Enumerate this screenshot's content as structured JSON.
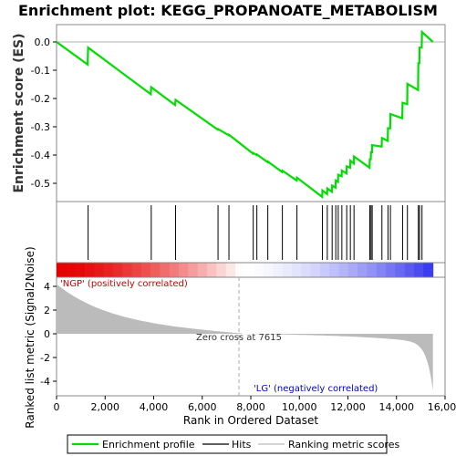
{
  "chart_data": {
    "type": "line",
    "title": "Enrichment plot: KEGG_PROPANOATE_METABOLISM",
    "ylabel": "Enrichment score (ES)",
    "ylabel2": "Ranked list metric (Signal2Noise)",
    "xlabel": "Rank in Ordered Dataset",
    "x_range": [
      0,
      16000
    ],
    "es_ylim": [
      -0.57,
      0.06
    ],
    "metric_ylim": [
      -5,
      5
    ],
    "x_ticks": [
      0,
      2000,
      4000,
      6000,
      8000,
      10000,
      12000,
      14000,
      16000
    ],
    "es_ticks": [
      0.0,
      -0.1,
      -0.2,
      -0.3,
      -0.4,
      -0.5
    ],
    "metric_ticks": [
      4,
      2,
      0,
      -2,
      -4
    ],
    "total_genes": 15500,
    "hits": [
      1300,
      3900,
      4900,
      6650,
      7100,
      8100,
      8250,
      8700,
      9300,
      9900,
      10950,
      11150,
      11350,
      11500,
      11600,
      11750,
      11950,
      12100,
      12250,
      12900,
      12950,
      13000,
      13400,
      13650,
      13750,
      14250,
      14450,
      14900,
      14950,
      15050
    ],
    "es_curve": [
      [
        0,
        0.0
      ],
      [
        1280,
        -0.08
      ],
      [
        1300,
        -0.02
      ],
      [
        3880,
        -0.185
      ],
      [
        3900,
        -0.16
      ],
      [
        4880,
        -0.223
      ],
      [
        4900,
        -0.205
      ],
      [
        6640,
        -0.31
      ],
      [
        6650,
        -0.308
      ],
      [
        7090,
        -0.33
      ],
      [
        7100,
        -0.328
      ],
      [
        8090,
        -0.395
      ],
      [
        8100,
        -0.393
      ],
      [
        8240,
        -0.4
      ],
      [
        8250,
        -0.398
      ],
      [
        8690,
        -0.425
      ],
      [
        8700,
        -0.423
      ],
      [
        9290,
        -0.46
      ],
      [
        9300,
        -0.455
      ],
      [
        9890,
        -0.49
      ],
      [
        9900,
        -0.48
      ],
      [
        10940,
        -0.548
      ],
      [
        10950,
        -0.525
      ],
      [
        11140,
        -0.538
      ],
      [
        11150,
        -0.518
      ],
      [
        11340,
        -0.53
      ],
      [
        11350,
        -0.508
      ],
      [
        11490,
        -0.515
      ],
      [
        11500,
        -0.49
      ],
      [
        11590,
        -0.495
      ],
      [
        11600,
        -0.47
      ],
      [
        11740,
        -0.475
      ],
      [
        11750,
        -0.455
      ],
      [
        11940,
        -0.465
      ],
      [
        11950,
        -0.44
      ],
      [
        12090,
        -0.445
      ],
      [
        12100,
        -0.42
      ],
      [
        12240,
        -0.43
      ],
      [
        12250,
        -0.405
      ],
      [
        12890,
        -0.445
      ],
      [
        12900,
        -0.415
      ],
      [
        12940,
        -0.415
      ],
      [
        12950,
        -0.39
      ],
      [
        12990,
        -0.39
      ],
      [
        13000,
        -0.365
      ],
      [
        13390,
        -0.37
      ],
      [
        13400,
        -0.34
      ],
      [
        13640,
        -0.35
      ],
      [
        13650,
        -0.305
      ],
      [
        13740,
        -0.305
      ],
      [
        13750,
        -0.255
      ],
      [
        14240,
        -0.27
      ],
      [
        14250,
        -0.215
      ],
      [
        14440,
        -0.22
      ],
      [
        14450,
        -0.148
      ],
      [
        14890,
        -0.17
      ],
      [
        14900,
        -0.075
      ],
      [
        14940,
        -0.075
      ],
      [
        14950,
        -0.02
      ],
      [
        15040,
        -0.02
      ],
      [
        15050,
        0.035
      ],
      [
        15500,
        0.0
      ]
    ],
    "zero_cross": 7615,
    "annotations": {
      "positive": "'NGP' (positively correlated)",
      "negative": "'LG' (negatively correlated)",
      "zero_cross": "Zero cross at 7615"
    },
    "legend": [
      "Enrichment profile",
      "Hits",
      "Ranking metric scores"
    ],
    "colors": {
      "curve": "#00dd00",
      "hits": "#000000",
      "metric_fill": "#bbbbbb",
      "red": "#e60000",
      "blue": "#3333ee"
    }
  }
}
